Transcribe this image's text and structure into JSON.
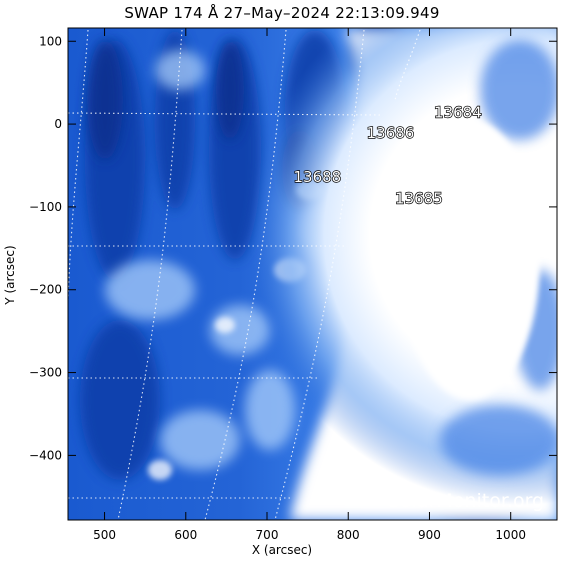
{
  "title": "SWAP 174 Å 27–May–2024 22:13:09.949",
  "xlabel": "X (arcsec)",
  "ylabel": "Y (arcsec)",
  "x_ticks": [
    "500",
    "600",
    "700",
    "800",
    "900",
    "1000"
  ],
  "y_ticks": [
    "100",
    "0",
    "−100",
    "−200",
    "−300",
    "−400"
  ],
  "x_tick_values": [
    500,
    600,
    700,
    800,
    900,
    1000
  ],
  "y_tick_values": [
    100,
    0,
    -100,
    -200,
    -300,
    -400
  ],
  "x_range": [
    455,
    1057
  ],
  "y_range": [
    -478,
    116
  ],
  "active_regions": [
    {
      "label": "13684",
      "x": 935,
      "y": 8
    },
    {
      "label": "13686",
      "x": 852,
      "y": -17
    },
    {
      "label": "13688",
      "x": 762,
      "y": -70
    },
    {
      "label": "13685",
      "x": 887,
      "y": -96
    }
  ],
  "watermark": "SolarMonitor.org",
  "colors": {
    "bright": "#ffffff",
    "mid": "#3a7ee8",
    "dark": "#0b3fb0",
    "deep": "#072e8a"
  }
}
